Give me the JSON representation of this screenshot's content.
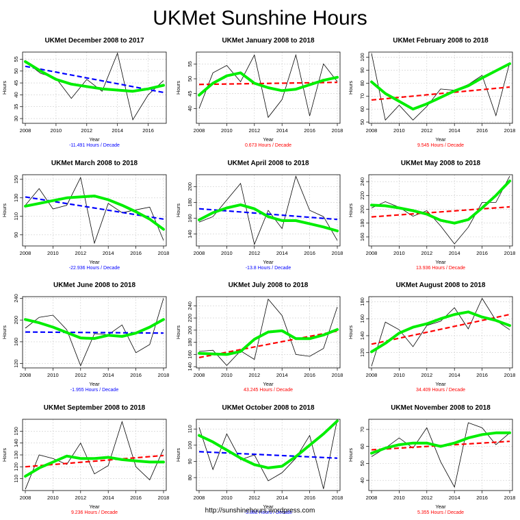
{
  "page": {
    "title": "UKMet Sunshine Hours",
    "credit": "http://sunshinehours.wordpress.com"
  },
  "colors": {
    "data_line": "#000000",
    "smooth_line": "#00ee00",
    "trend_up": "#ff0000",
    "trend_down": "#0000ff",
    "grid": "#cccccc"
  },
  "chart_data": [
    {
      "type": "line",
      "title": "UKMet December 2008 to 2017",
      "xlabel": "Year",
      "ylabel": "Hours",
      "x": [
        2008,
        2009,
        2010,
        2011,
        2012,
        2013,
        2014,
        2015,
        2016,
        2017
      ],
      "y": [
        54,
        49,
        47,
        38.5,
        46.5,
        41.5,
        57.5,
        29.5,
        40,
        46
      ],
      "smooth": [
        54,
        50,
        46.5,
        44.5,
        43.5,
        42.5,
        42,
        41.5,
        42.5,
        44
      ],
      "trend": [
        52,
        41
      ],
      "xlim": [
        2008,
        2017
      ],
      "ylim": [
        28,
        58
      ],
      "xticks": [
        2008,
        2010,
        2012,
        2014,
        2016
      ],
      "yticks": [
        30,
        35,
        40,
        45,
        50,
        55
      ],
      "trend_direction": "down",
      "trend_label": "-11.491 Hours / Decade"
    },
    {
      "type": "line",
      "title": "UKMet January 2008 to 2018",
      "xlabel": "Year",
      "ylabel": "Hours",
      "x": [
        2008,
        2009,
        2010,
        2011,
        2012,
        2013,
        2014,
        2015,
        2016,
        2017,
        2018
      ],
      "y": [
        40,
        52,
        54.5,
        49,
        58,
        37,
        43,
        58,
        37.5,
        55,
        49
      ],
      "smooth": [
        44.5,
        48.5,
        51,
        52,
        48.5,
        47,
        46,
        46.5,
        48,
        49.5,
        50.5
      ],
      "trend": [
        48.1,
        48.8
      ],
      "xlim": [
        2008,
        2018
      ],
      "ylim": [
        35,
        59
      ],
      "xticks": [
        2008,
        2010,
        2012,
        2014,
        2016,
        2018
      ],
      "yticks": [
        40,
        45,
        50,
        55
      ],
      "trend_direction": "up",
      "trend_label": "0.673 Hours / Decade"
    },
    {
      "type": "line",
      "title": "UKMet February 2008 to 2018",
      "xlabel": "Year",
      "ylabel": "Hours",
      "x": [
        2008,
        2009,
        2010,
        2011,
        2012,
        2013,
        2014,
        2015,
        2016,
        2017,
        2018
      ],
      "y": [
        103,
        51.5,
        63,
        51.5,
        62,
        75.5,
        74.5,
        79,
        86,
        55,
        96
      ],
      "smooth": [
        81,
        72,
        66,
        60,
        64,
        69,
        74,
        78,
        84,
        89.5,
        95
      ],
      "trend": [
        67,
        77
      ],
      "xlim": [
        2008,
        2018
      ],
      "ylim": [
        49,
        104
      ],
      "xticks": [
        2008,
        2010,
        2012,
        2014,
        2016,
        2018
      ],
      "yticks": [
        50,
        60,
        70,
        80,
        90,
        100
      ],
      "trend_direction": "up",
      "trend_label": "9.545 Hours / Decade"
    },
    {
      "type": "line",
      "title": "UKMet March 2008 to 2018",
      "xlabel": "Year",
      "ylabel": "Hours",
      "x": [
        2008,
        2009,
        2010,
        2011,
        2012,
        2013,
        2014,
        2015,
        2016,
        2017,
        2018
      ],
      "y": [
        122,
        140,
        118,
        122,
        152,
        81,
        124,
        114,
        117,
        120,
        84
      ],
      "smooth": [
        121,
        124,
        127,
        130,
        131,
        132,
        128,
        122,
        115,
        107,
        96
      ],
      "trend": [
        131,
        107
      ],
      "xlim": [
        2008,
        2018
      ],
      "ylim": [
        78,
        155
      ],
      "xticks": [
        2008,
        2010,
        2012,
        2014,
        2016,
        2018
      ],
      "yticks": [
        90,
        110,
        130,
        150
      ],
      "trend_direction": "down",
      "trend_label": "-22.936 Hours / Decade"
    },
    {
      "type": "line",
      "title": "UKMet April 2008 to 2018",
      "xlabel": "Year",
      "ylabel": "Hours",
      "x": [
        2008,
        2009,
        2010,
        2011,
        2012,
        2013,
        2014,
        2015,
        2016,
        2017,
        2018
      ],
      "y": [
        155,
        162,
        183,
        204,
        127,
        170,
        147,
        213,
        170,
        162,
        132
      ],
      "smooth": [
        158,
        167,
        173,
        177,
        172,
        162,
        157,
        157,
        153,
        149,
        144
      ],
      "trend": [
        172,
        158.5
      ],
      "xlim": [
        2008,
        2018
      ],
      "ylim": [
        125,
        215
      ],
      "xticks": [
        2008,
        2010,
        2012,
        2014,
        2016,
        2018
      ],
      "yticks": [
        140,
        160,
        180,
        200
      ],
      "trend_direction": "down",
      "trend_label": "-13.8 Hours / Decade"
    },
    {
      "type": "line",
      "title": "UKMet May 2008 to 2018",
      "xlabel": "Year",
      "ylabel": "Hours",
      "x": [
        2008,
        2009,
        2010,
        2011,
        2012,
        2013,
        2014,
        2015,
        2016,
        2017,
        2018
      ],
      "y": [
        202,
        211,
        203,
        190,
        198,
        176,
        150,
        174,
        210,
        210,
        248
      ],
      "smooth": [
        206,
        205,
        202,
        198,
        193,
        184,
        180,
        185,
        202,
        220,
        241
      ],
      "trend": [
        189,
        203.5
      ],
      "xlim": [
        2008,
        2018
      ],
      "ylim": [
        147,
        250
      ],
      "xticks": [
        2008,
        2010,
        2012,
        2014,
        2016,
        2018
      ],
      "yticks": [
        160,
        180,
        200,
        220,
        240
      ],
      "trend_direction": "up",
      "trend_label": "13.936 Hours / Decade"
    },
    {
      "type": "line",
      "title": "UKMet June 2008 to 2018",
      "xlabel": "Year",
      "ylabel": "Hours",
      "x": [
        2008,
        2009,
        2010,
        2011,
        2012,
        2013,
        2014,
        2015,
        2016,
        2017,
        2018
      ],
      "y": [
        185,
        205,
        209,
        182,
        116,
        175,
        173,
        191,
        140,
        155,
        240
      ],
      "smooth": [
        201,
        195,
        187,
        177,
        167,
        166,
        172,
        170,
        176,
        187,
        201
      ],
      "trend": [
        178,
        176
      ],
      "xlim": [
        2008,
        2018
      ],
      "ylim": [
        112,
        243
      ],
      "xticks": [
        2008,
        2010,
        2012,
        2014,
        2016,
        2018
      ],
      "yticks": [
        120,
        160,
        200,
        240
      ],
      "trend_direction": "down",
      "trend_label": "-1.955 Hours / Decade"
    },
    {
      "type": "line",
      "title": "UKMet July 2008 to 2018",
      "xlabel": "Year",
      "ylabel": "Hours",
      "x": [
        2008,
        2009,
        2010,
        2011,
        2012,
        2013,
        2014,
        2015,
        2016,
        2017,
        2018
      ],
      "y": [
        165,
        167,
        142,
        166,
        152,
        251,
        224,
        160,
        157,
        170,
        238
      ],
      "smooth": [
        162,
        161,
        160,
        165,
        185,
        197,
        199,
        186,
        186,
        192,
        201
      ],
      "trend": [
        155,
        198.5
      ],
      "xlim": [
        2008,
        2018
      ],
      "ylim": [
        138,
        255
      ],
      "xticks": [
        2008,
        2010,
        2012,
        2014,
        2016,
        2018
      ],
      "yticks": [
        140,
        160,
        180,
        200,
        220,
        240
      ],
      "trend_direction": "up",
      "trend_label": "43.245 Hours / Decade"
    },
    {
      "type": "line",
      "title": "UKMet August 2008 to 2018",
      "xlabel": "Year",
      "ylabel": "Hours",
      "x": [
        2008,
        2009,
        2010,
        2011,
        2012,
        2013,
        2014,
        2015,
        2016,
        2017,
        2018
      ],
      "y": [
        104,
        156,
        147,
        127,
        152,
        157,
        173,
        148,
        184,
        158,
        147
      ],
      "smooth": [
        121,
        131,
        143,
        150,
        154,
        160,
        165,
        168,
        162,
        158,
        152
      ],
      "trend": [
        130,
        165
      ],
      "xlim": [
        2008,
        2018
      ],
      "ylim": [
        102,
        186
      ],
      "xticks": [
        2008,
        2010,
        2012,
        2014,
        2016,
        2018
      ],
      "yticks": [
        120,
        140,
        160,
        180
      ],
      "trend_direction": "up",
      "trend_label": "34.409 Hours / Decade"
    },
    {
      "type": "line",
      "title": "UKMet September 2008 to 2018",
      "xlabel": "Year",
      "ylabel": "Hours",
      "x": [
        2008,
        2009,
        2010,
        2011,
        2012,
        2013,
        2014,
        2015,
        2016,
        2017,
        2018
      ],
      "y": [
        101,
        130,
        127,
        122,
        140,
        114,
        121,
        158,
        120,
        109,
        135
      ],
      "smooth": [
        112,
        119,
        124,
        129,
        127,
        127,
        128,
        126,
        125,
        124,
        124
      ],
      "trend": [
        120,
        129.5
      ],
      "xlim": [
        2008,
        2018
      ],
      "ylim": [
        100,
        160
      ],
      "xticks": [
        2008,
        2010,
        2012,
        2014,
        2016,
        2018
      ],
      "yticks": [
        110,
        120,
        130,
        140,
        150
      ],
      "trend_direction": "up",
      "trend_label": "9.236 Hours / Decade"
    },
    {
      "type": "line",
      "title": "UKMet October 2008 to 2018",
      "xlabel": "Year",
      "ylabel": "Hours",
      "x": [
        2008,
        2009,
        2010,
        2011,
        2012,
        2013,
        2014,
        2015,
        2016,
        2017,
        2018
      ],
      "y": [
        111,
        85,
        107,
        91,
        94,
        78,
        83,
        92,
        106,
        73,
        116
      ],
      "smooth": [
        106,
        102,
        97,
        92,
        88,
        86,
        87,
        93,
        100,
        107,
        115
      ],
      "trend": [
        96,
        92
      ],
      "xlim": [
        2008,
        2018
      ],
      "ylim": [
        72,
        116
      ],
      "xticks": [
        2008,
        2010,
        2012,
        2014,
        2016,
        2018
      ],
      "yticks": [
        80,
        90,
        100,
        110
      ],
      "trend_direction": "down",
      "trend_label": "-3.882 Hours / Decade"
    },
    {
      "type": "line",
      "title": "UKMet November 2008 to 2018",
      "xlabel": "Year",
      "ylabel": "Hours",
      "x": [
        2008,
        2009,
        2010,
        2011,
        2012,
        2013,
        2014,
        2015,
        2016,
        2017,
        2018
      ],
      "y": [
        54,
        59,
        65,
        59,
        71,
        51,
        36,
        74,
        71,
        61,
        68
      ],
      "smooth": [
        56,
        59,
        61,
        62,
        62,
        60,
        62,
        65,
        67,
        68,
        68
      ],
      "trend": [
        58,
        63
      ],
      "xlim": [
        2008,
        2018
      ],
      "ylim": [
        34,
        76
      ],
      "xticks": [
        2008,
        2010,
        2012,
        2014,
        2016,
        2018
      ],
      "yticks": [
        40,
        50,
        60,
        70
      ],
      "trend_direction": "up",
      "trend_label": "5.355 Hours / Decade"
    }
  ]
}
